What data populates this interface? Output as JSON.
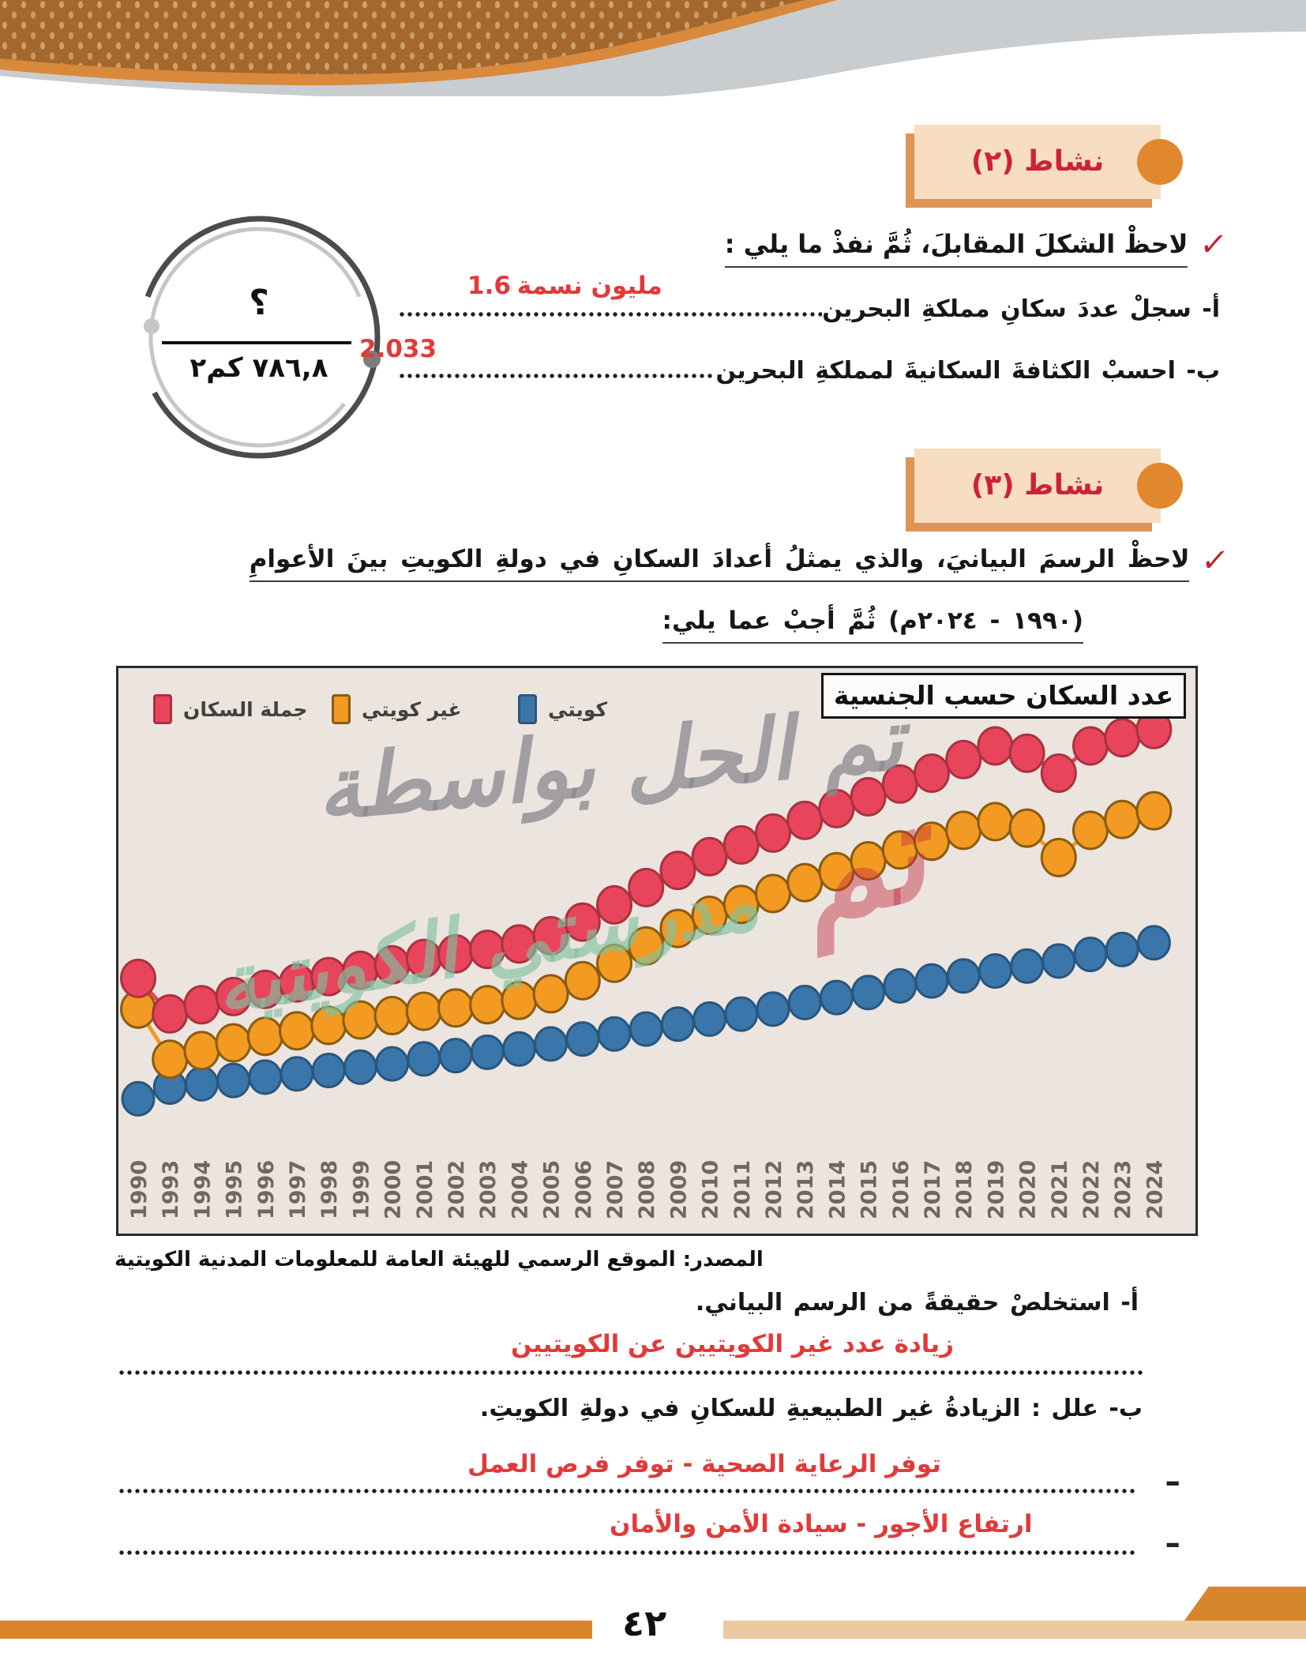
{
  "page": {
    "number": "٤٢"
  },
  "activity2": {
    "badge": "نشاط (٢)",
    "check_line": "لاحظْ الشكلَ المقابلَ، ثُمَّ نفذْ ما يلي :",
    "item_a_label": "أ- سجلْ عددَ سكانِ مملكةِ البحرين",
    "item_a_answer_number": "1.6",
    "item_a_answer_unit": "مليون نسمة",
    "item_b_label": "ب- احسبْ الكثافةَ السكانيةَ لمملكةِ البحرين",
    "item_b_answer": "2.033",
    "figure": {
      "numerator": "؟",
      "denominator": "٧٨٦,٨ كم٢"
    }
  },
  "activity3": {
    "badge": "نشاط (٣)",
    "intro_line1": "لاحظْ الرسمَ البيانيَ، والذي يمثلُ أعدادَ السكانِ في دولةِ الكويتِ بينَ الأعوامِ",
    "intro_line2": "(١٩٩٠ - ٢٠٢٤م) ثُمَّ أجبْ عما يلي:",
    "source": "المصدر: الموقع الرسمي للهيئة العامة للمعلومات المدنية الكويتية",
    "question_a": "أ- استخلصْ حقيقةً من الرسم البياني.",
    "answer_a": "زيادة عدد غير الكويتيين عن الكويتيين",
    "question_b": "ب- علل : الزيادةُ غير الطبيعيةِ للسكانِ في دولةِ الكويتِ.",
    "dash": "ـ",
    "answer_b1": "توفر الرعاية الصحية - توفر فرص العمل",
    "answer_b2": "ارتفاع الأجور - سيادة الأمن والأمان"
  },
  "chart_data": {
    "type": "line",
    "title": "عدد السكان حسب الجنسية",
    "values_unit_millions": true,
    "values_estimated": true,
    "grid": false,
    "legend_position": "top-left",
    "ylim": [
      0,
      5.5
    ],
    "x_years": [
      "1990",
      "1993",
      "1994",
      "1995",
      "1996",
      "1997",
      "1998",
      "1999",
      "2000",
      "2001",
      "2002",
      "2003",
      "2004",
      "2005",
      "2006",
      "2007",
      "2008",
      "2009",
      "2010",
      "2011",
      "2012",
      "2013",
      "2014",
      "2015",
      "2016",
      "2017",
      "2018",
      "2019",
      "2020",
      "2021",
      "2022",
      "2023",
      "2024"
    ],
    "series": [
      {
        "name": "جملة السكان",
        "color": "#e8455c",
        "stroke": "#a8333f",
        "values": [
          2.14,
          1.75,
          1.85,
          1.94,
          2.02,
          2.09,
          2.16,
          2.23,
          2.29,
          2.36,
          2.41,
          2.46,
          2.52,
          2.61,
          2.76,
          2.95,
          3.14,
          3.33,
          3.48,
          3.61,
          3.74,
          3.88,
          4.01,
          4.14,
          4.28,
          4.4,
          4.55,
          4.7,
          4.62,
          4.4,
          4.7,
          4.79,
          4.88
        ]
      },
      {
        "name": "غير كويتي",
        "color": "#f29a21",
        "stroke": "#8a5c10",
        "values": [
          1.56,
          1.1,
          1.18,
          1.25,
          1.31,
          1.36,
          1.41,
          1.46,
          1.5,
          1.54,
          1.57,
          1.6,
          1.64,
          1.7,
          1.82,
          1.98,
          2.14,
          2.3,
          2.42,
          2.52,
          2.62,
          2.72,
          2.82,
          2.92,
          3.02,
          3.1,
          3.2,
          3.28,
          3.22,
          2.95,
          3.2,
          3.3,
          3.38
        ]
      },
      {
        "name": "كويتي",
        "color": "#3b76ab",
        "stroke": "#28567d",
        "values": [
          0.58,
          0.65,
          0.67,
          0.69,
          0.71,
          0.73,
          0.75,
          0.77,
          0.79,
          0.82,
          0.84,
          0.86,
          0.88,
          0.91,
          0.94,
          0.97,
          1.0,
          1.03,
          1.06,
          1.09,
          1.12,
          1.16,
          1.19,
          1.22,
          1.26,
          1.29,
          1.32,
          1.35,
          1.38,
          1.41,
          1.45,
          1.48,
          1.52
        ]
      }
    ],
    "watermark_gray": "تم الحل بواسطة",
    "watermark_green": "مدرستي الكويتية",
    "watermark_red": "تم"
  }
}
